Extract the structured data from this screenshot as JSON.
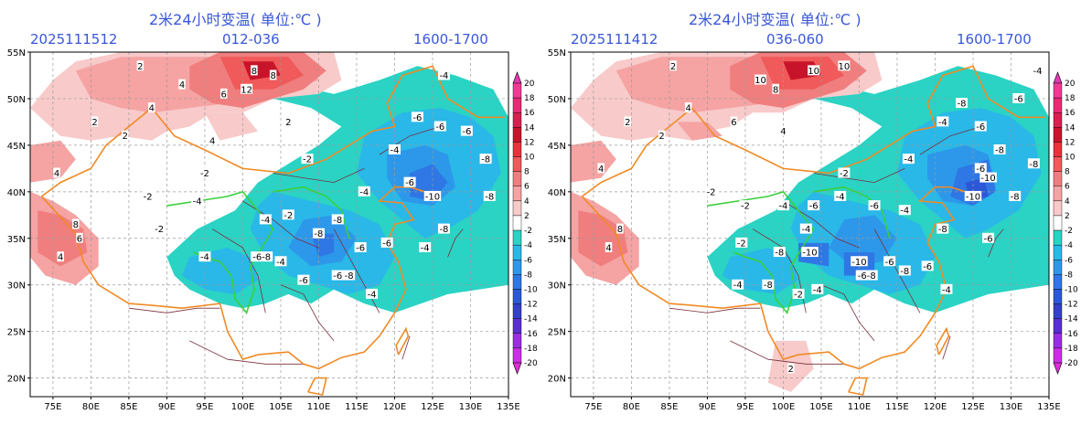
{
  "colors": {
    "header_text": "#3a57d8",
    "province_border": "#7a2f3c",
    "orange_boundary": "#f08a24",
    "green_boundary": "#3ccf3c",
    "grid": "#9a9a9a"
  },
  "legend": {
    "levels": [
      "20",
      "18",
      "16",
      "14",
      "12",
      "10",
      "8",
      "6",
      "4",
      "2",
      "-2",
      "-4",
      "-6",
      "-8",
      "-10",
      "-12",
      "-14",
      "-16",
      "-18",
      "-20"
    ],
    "colors": [
      "#e03ab4",
      "#f03a96",
      "#e82a74",
      "#d62050",
      "#c8142a",
      "#e8333a",
      "#f05a5a",
      "#f07e7e",
      "#f5a3a3",
      "#f8caca",
      "#ffffff",
      "#2ad3c4",
      "#29b8e8",
      "#2d98ea",
      "#2e77e4",
      "#2c58d8",
      "#3440c6",
      "#5a2ed0",
      "#9a2ee0",
      "#cc2ee6",
      "#e02ed8"
    ]
  },
  "axes": {
    "lat_labels": [
      "55N",
      "50N",
      "45N",
      "40N",
      "35N",
      "30N",
      "25N",
      "20N"
    ],
    "lon_labels": [
      "75E",
      "80E",
      "85E",
      "90E",
      "95E",
      "100E",
      "105E",
      "110E",
      "115E",
      "120E",
      "125E",
      "130E",
      "135E"
    ]
  },
  "panels": [
    {
      "title": "2米24小时变温( 单位:℃ )",
      "init": "2025111512",
      "range": "012-036",
      "time": "1600-1700",
      "labels": [
        {
          "t": "-4",
          "lat": 52.5,
          "lon": 126.5
        },
        {
          "t": "-6",
          "lat": 48.0,
          "lon": 123.0
        },
        {
          "t": "-6",
          "lat": 47.0,
          "lon": 126.0
        },
        {
          "t": "-6",
          "lat": 46.5,
          "lon": 129.5
        },
        {
          "t": "-8",
          "lat": 43.5,
          "lon": 132.0
        },
        {
          "t": "-4",
          "lat": 44.5,
          "lon": 120.0
        },
        {
          "t": "-2",
          "lat": 43.5,
          "lon": 108.5
        },
        {
          "t": "-2",
          "lat": 42.0,
          "lon": 95.0
        },
        {
          "t": "-4",
          "lat": 40.0,
          "lon": 116.0
        },
        {
          "t": "-6",
          "lat": 41.0,
          "lon": 122.0
        },
        {
          "t": "-10",
          "lat": 39.5,
          "lon": 125.0
        },
        {
          "t": "-8",
          "lat": 39.5,
          "lon": 132.5
        },
        {
          "t": "-8",
          "lat": 37.0,
          "lon": 112.5
        },
        {
          "t": "-8",
          "lat": 35.5,
          "lon": 110.0
        },
        {
          "t": "-6",
          "lat": 34.0,
          "lon": 115.5
        },
        {
          "t": "-4",
          "lat": 32.5,
          "lon": 105.0
        },
        {
          "t": "-6-8",
          "lat": 33.0,
          "lon": 102.5
        },
        {
          "t": "-4",
          "lat": 33.0,
          "lon": 95.0
        },
        {
          "t": "-8",
          "lat": 31.0,
          "lon": 114.0
        },
        {
          "t": "-6",
          "lat": 30.5,
          "lon": 108.0
        },
        {
          "t": "-4",
          "lat": 29.0,
          "lon": 117.0
        },
        {
          "t": "-8",
          "lat": 36.0,
          "lon": 126.5
        },
        {
          "t": "-4",
          "lat": 34.0,
          "lon": 124.0
        },
        {
          "t": "-2",
          "lat": 39.5,
          "lon": 87.5
        },
        {
          "t": "-4",
          "lat": 39.0,
          "lon": 94.0
        },
        {
          "t": "-2",
          "lat": 36.0,
          "lon": 89.0
        },
        {
          "t": "-2",
          "lat": 37.5,
          "lon": 106.0
        },
        {
          "t": "-4",
          "lat": 37.0,
          "lon": 103.0
        },
        {
          "t": "-6",
          "lat": 34.5,
          "lon": 119.0
        },
        {
          "t": "-6",
          "lat": 31.0,
          "lon": 112.5
        },
        {
          "t": "2",
          "lat": 53.5,
          "lon": 86.5
        },
        {
          "t": "4",
          "lat": 51.5,
          "lon": 92.0
        },
        {
          "t": "6",
          "lat": 50.5,
          "lon": 97.5
        },
        {
          "t": "8",
          "lat": 53.0,
          "lon": 101.5
        },
        {
          "t": "12",
          "lat": 51.0,
          "lon": 100.5
        },
        {
          "t": "8",
          "lat": 52.5,
          "lon": 104.0
        },
        {
          "t": "4",
          "lat": 49.0,
          "lon": 88.0
        },
        {
          "t": "2",
          "lat": 47.5,
          "lon": 80.5
        },
        {
          "t": "4",
          "lat": 42.0,
          "lon": 75.5
        },
        {
          "t": "8",
          "lat": 36.5,
          "lon": 78.0
        },
        {
          "t": "4",
          "lat": 33.0,
          "lon": 76.0
        },
        {
          "t": "6",
          "lat": 35.0,
          "lon": 78.5
        },
        {
          "t": "2",
          "lat": 46.0,
          "lon": 84.5
        },
        {
          "t": "4",
          "lat": 45.5,
          "lon": 96.0
        },
        {
          "t": "2",
          "lat": 47.5,
          "lon": 106.0
        }
      ]
    },
    {
      "title": "2米24小时变温( 单位:℃ )",
      "init": "2025111412",
      "range": "036-060",
      "time": "1600-1700",
      "labels": [
        {
          "t": "-4",
          "lat": 53.0,
          "lon": 133.5
        },
        {
          "t": "-6",
          "lat": 50.0,
          "lon": 131.0
        },
        {
          "t": "-8",
          "lat": 49.5,
          "lon": 123.5
        },
        {
          "t": "-6",
          "lat": 47.0,
          "lon": 126.0
        },
        {
          "t": "-4",
          "lat": 47.5,
          "lon": 121.0
        },
        {
          "t": "-8",
          "lat": 44.5,
          "lon": 128.5
        },
        {
          "t": "-8",
          "lat": 43.0,
          "lon": 133.0
        },
        {
          "t": "-6",
          "lat": 42.5,
          "lon": 126.0
        },
        {
          "t": "-10",
          "lat": 41.5,
          "lon": 127.0
        },
        {
          "t": "-10",
          "lat": 39.5,
          "lon": 125.0
        },
        {
          "t": "-8",
          "lat": 39.5,
          "lon": 130.5
        },
        {
          "t": "-6",
          "lat": 35.0,
          "lon": 127.0
        },
        {
          "t": "-4",
          "lat": 43.5,
          "lon": 116.5
        },
        {
          "t": "-2",
          "lat": 42.0,
          "lon": 108.0
        },
        {
          "t": "-4",
          "lat": 39.5,
          "lon": 107.5
        },
        {
          "t": "-6",
          "lat": 38.5,
          "lon": 112.0
        },
        {
          "t": "-4",
          "lat": 38.0,
          "lon": 116.0
        },
        {
          "t": "-8",
          "lat": 36.0,
          "lon": 121.0
        },
        {
          "t": "-10",
          "lat": 33.5,
          "lon": 103.5
        },
        {
          "t": "-8",
          "lat": 33.5,
          "lon": 99.5
        },
        {
          "t": "-10",
          "lat": 32.5,
          "lon": 110.0
        },
        {
          "t": "-6",
          "lat": 32.5,
          "lon": 114.0
        },
        {
          "t": "-6-8",
          "lat": 31.0,
          "lon": 111.0
        },
        {
          "t": "-8",
          "lat": 30.0,
          "lon": 98.0
        },
        {
          "t": "-4",
          "lat": 29.5,
          "lon": 104.5
        },
        {
          "t": "-2",
          "lat": 29.0,
          "lon": 102.0
        },
        {
          "t": "-4",
          "lat": 30.0,
          "lon": 94.0
        },
        {
          "t": "-2",
          "lat": 40.0,
          "lon": 90.5
        },
        {
          "t": "-4",
          "lat": 38.5,
          "lon": 100.0
        },
        {
          "t": "-2",
          "lat": 38.5,
          "lon": 95.0
        },
        {
          "t": "-2",
          "lat": 34.5,
          "lon": 94.5
        },
        {
          "t": "-4",
          "lat": 36.0,
          "lon": 103.0
        },
        {
          "t": "-6",
          "lat": 38.5,
          "lon": 104.0
        },
        {
          "t": "-8",
          "lat": 31.5,
          "lon": 116.0
        },
        {
          "t": "-4",
          "lat": 29.5,
          "lon": 121.5
        },
        {
          "t": "-6",
          "lat": 32.0,
          "lon": 119.0
        },
        {
          "t": "2",
          "lat": 53.5,
          "lon": 85.5
        },
        {
          "t": "10",
          "lat": 52.0,
          "lon": 97.0
        },
        {
          "t": "8",
          "lat": 51.0,
          "lon": 99.0
        },
        {
          "t": "10",
          "lat": 53.0,
          "lon": 104.0
        },
        {
          "t": "10",
          "lat": 53.5,
          "lon": 108.0
        },
        {
          "t": "4",
          "lat": 49.0,
          "lon": 87.5
        },
        {
          "t": "6",
          "lat": 47.5,
          "lon": 93.5
        },
        {
          "t": "2",
          "lat": 47.5,
          "lon": 79.5
        },
        {
          "t": "4",
          "lat": 42.5,
          "lon": 76.0
        },
        {
          "t": "8",
          "lat": 36.0,
          "lon": 78.5
        },
        {
          "t": "4",
          "lat": 34.0,
          "lon": 77.0
        },
        {
          "t": "2",
          "lat": 21.0,
          "lon": 101.0
        },
        {
          "t": "2",
          "lat": 46.0,
          "lon": 84.0
        },
        {
          "t": "4",
          "lat": 46.5,
          "lon": 100.0
        }
      ]
    }
  ]
}
